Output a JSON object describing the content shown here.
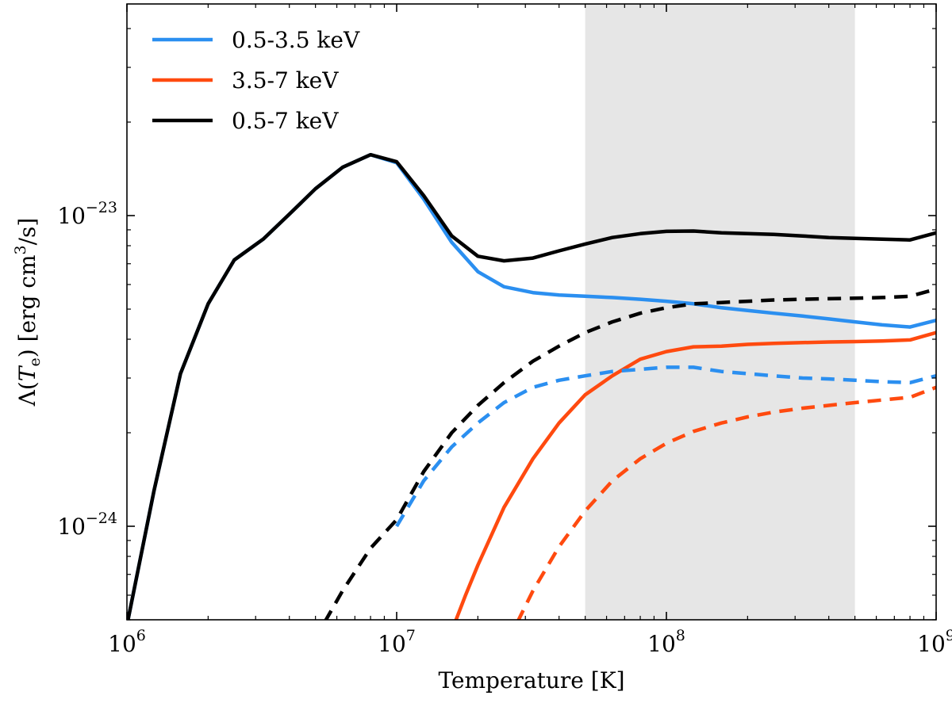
{
  "chart_data": {
    "type": "line",
    "title": "",
    "xlabel": "Temperature [K]",
    "ylabel": "Λ(T_e) [erg cm³/s]",
    "ylabel_parts": {
      "lambda": "Λ(",
      "var": "T",
      "sub": "e",
      "mid": ") [erg cm",
      "sup": "3",
      "end": "/s]"
    },
    "xscale": "log",
    "yscale": "log",
    "xlim": [
      1000000.0,
      1000000000.0
    ],
    "ylim": [
      5e-25,
      4.8e-23
    ],
    "x_ticks": [
      {
        "value": 1000000.0,
        "base": "10",
        "exp": "6"
      },
      {
        "value": 10000000.0,
        "base": "10",
        "exp": "7"
      },
      {
        "value": 100000000.0,
        "base": "10",
        "exp": "8"
      },
      {
        "value": 1000000000.0,
        "base": "10",
        "exp": "9"
      }
    ],
    "y_ticks": [
      {
        "value": 1e-24,
        "base": "10",
        "exp": "−24"
      },
      {
        "value": 1e-23,
        "base": "10",
        "exp": "−23"
      }
    ],
    "shaded_region": {
      "x": [
        50000000.0,
        500000000.0
      ],
      "color": "#e6e6e6"
    },
    "legend": [
      {
        "label": "0.5-3.5 keV",
        "color": "#2b8ff0"
      },
      {
        "label": "3.5-7 keV",
        "color": "#ff4a0f"
      },
      {
        "label": "0.5-7 keV",
        "color": "#000000"
      }
    ],
    "legend_position": "top-left",
    "series": [
      {
        "name": "0.5-3.5 keV",
        "style": "solid",
        "color": "#2b8ff0",
        "x": [
          1000000.0,
          1260000.0,
          1580000.0,
          2000000.0,
          2500000.0,
          3200000.0,
          4000000.0,
          5000000.0,
          6300000.0,
          8000000.0,
          10000000.0,
          12600000.0,
          16000000.0,
          20000000.0,
          25000000.0,
          32000000.0,
          40000000.0,
          50000000.0,
          63000000.0,
          80000000.0,
          100000000.0,
          126000000.0,
          160000000.0,
          200000000.0,
          250000000.0,
          320000000.0,
          400000000.0,
          500000000.0,
          630000000.0,
          800000000.0,
          1000000000.0
        ],
        "y": [
          4.8e-25,
          1.3e-24,
          3.1e-24,
          5.2e-24,
          7.2e-24,
          8.4e-24,
          1.01e-23,
          1.22e-23,
          1.43e-23,
          1.57e-23,
          1.48e-23,
          1.13e-23,
          8.2e-24,
          6.6e-24,
          5.9e-24,
          5.65e-24,
          5.55e-24,
          5.5e-24,
          5.45e-24,
          5.38e-24,
          5.3e-24,
          5.2e-24,
          5.05e-24,
          4.95e-24,
          4.85e-24,
          4.75e-24,
          4.65e-24,
          4.55e-24,
          4.45e-24,
          4.38e-24,
          4.6e-24
        ]
      },
      {
        "name": "3.5-7 keV",
        "style": "solid",
        "color": "#ff4a0f",
        "x": [
          16000000.0,
          18000000.0,
          20000000.0,
          25000000.0,
          32000000.0,
          40000000.0,
          50000000.0,
          63000000.0,
          80000000.0,
          100000000.0,
          126000000.0,
          160000000.0,
          200000000.0,
          250000000.0,
          320000000.0,
          400000000.0,
          500000000.0,
          630000000.0,
          800000000.0,
          1000000000.0
        ],
        "y": [
          4.6e-25,
          6e-25,
          7.5e-25,
          1.15e-24,
          1.65e-24,
          2.15e-24,
          2.65e-24,
          3.05e-24,
          3.45e-24,
          3.65e-24,
          3.78e-24,
          3.8e-24,
          3.85e-24,
          3.88e-24,
          3.9e-24,
          3.92e-24,
          3.93e-24,
          3.95e-24,
          3.98e-24,
          4.2e-24
        ]
      },
      {
        "name": "0.5-7 keV",
        "style": "solid",
        "color": "#000000",
        "x": [
          1000000.0,
          1260000.0,
          1580000.0,
          2000000.0,
          2500000.0,
          3200000.0,
          4000000.0,
          5000000.0,
          6300000.0,
          8000000.0,
          10000000.0,
          12600000.0,
          16000000.0,
          20000000.0,
          25000000.0,
          32000000.0,
          40000000.0,
          50000000.0,
          63000000.0,
          80000000.0,
          100000000.0,
          126000000.0,
          160000000.0,
          200000000.0,
          250000000.0,
          320000000.0,
          400000000.0,
          500000000.0,
          630000000.0,
          800000000.0,
          1000000000.0
        ],
        "y": [
          4.8e-25,
          1.3e-24,
          3.1e-24,
          5.2e-24,
          7.2e-24,
          8.4e-24,
          1.01e-23,
          1.22e-23,
          1.43e-23,
          1.57e-23,
          1.49e-23,
          1.16e-23,
          8.6e-24,
          7.4e-24,
          7.15e-24,
          7.3e-24,
          7.7e-24,
          8.1e-24,
          8.5e-24,
          8.75e-24,
          8.9e-24,
          8.92e-24,
          8.8e-24,
          8.75e-24,
          8.7e-24,
          8.6e-24,
          8.5e-24,
          8.45e-24,
          8.4e-24,
          8.35e-24,
          8.8e-24
        ]
      },
      {
        "name": "0.5-3.5 keV (dashed)",
        "style": "dashed",
        "color": "#2b8ff0",
        "x": [
          10000000.0,
          12600000.0,
          16000000.0,
          20000000.0,
          25000000.0,
          32000000.0,
          40000000.0,
          50000000.0,
          63000000.0,
          80000000.0,
          100000000.0,
          126000000.0,
          160000000.0,
          200000000.0,
          250000000.0,
          320000000.0,
          400000000.0,
          500000000.0,
          630000000.0,
          800000000.0,
          1000000000.0
        ],
        "y": [
          1e-24,
          1.4e-24,
          1.8e-24,
          2.15e-24,
          2.5e-24,
          2.8e-24,
          2.95e-24,
          3.05e-24,
          3.15e-24,
          3.2e-24,
          3.25e-24,
          3.25e-24,
          3.15e-24,
          3.1e-24,
          3.05e-24,
          3e-24,
          2.98e-24,
          2.95e-24,
          2.92e-24,
          2.9e-24,
          3.05e-24
        ]
      },
      {
        "name": "3.5-7 keV (dashed)",
        "style": "dashed",
        "color": "#ff4a0f",
        "x": [
          28000000.0,
          32000000.0,
          40000000.0,
          50000000.0,
          63000000.0,
          80000000.0,
          100000000.0,
          126000000.0,
          160000000.0,
          200000000.0,
          250000000.0,
          320000000.0,
          400000000.0,
          500000000.0,
          630000000.0,
          800000000.0,
          1000000000.0
        ],
        "y": [
          4.9e-25,
          6.2e-25,
          8.6e-25,
          1.12e-24,
          1.4e-24,
          1.65e-24,
          1.85e-24,
          2.02e-24,
          2.15e-24,
          2.25e-24,
          2.33e-24,
          2.4e-24,
          2.45e-24,
          2.5e-24,
          2.55e-24,
          2.6e-24,
          2.8e-24
        ]
      },
      {
        "name": "0.5-7 keV (dashed)",
        "style": "dashed",
        "color": "#000000",
        "x": [
          5400000.0,
          6300000.0,
          8000000.0,
          10000000.0,
          12600000.0,
          16000000.0,
          20000000.0,
          25000000.0,
          32000000.0,
          40000000.0,
          50000000.0,
          63000000.0,
          80000000.0,
          100000000.0,
          126000000.0,
          160000000.0,
          200000000.0,
          250000000.0,
          320000000.0,
          400000000.0,
          500000000.0,
          630000000.0,
          800000000.0,
          1000000000.0
        ],
        "y": [
          4.9e-25,
          6.2e-25,
          8.5e-25,
          1.05e-24,
          1.5e-24,
          2e-24,
          2.45e-24,
          2.9e-24,
          3.4e-24,
          3.8e-24,
          4.2e-24,
          4.55e-24,
          4.85e-24,
          5.05e-24,
          5.2e-24,
          5.25e-24,
          5.3e-24,
          5.35e-24,
          5.38e-24,
          5.4e-24,
          5.42e-24,
          5.45e-24,
          5.5e-24,
          5.8e-24
        ]
      }
    ]
  }
}
